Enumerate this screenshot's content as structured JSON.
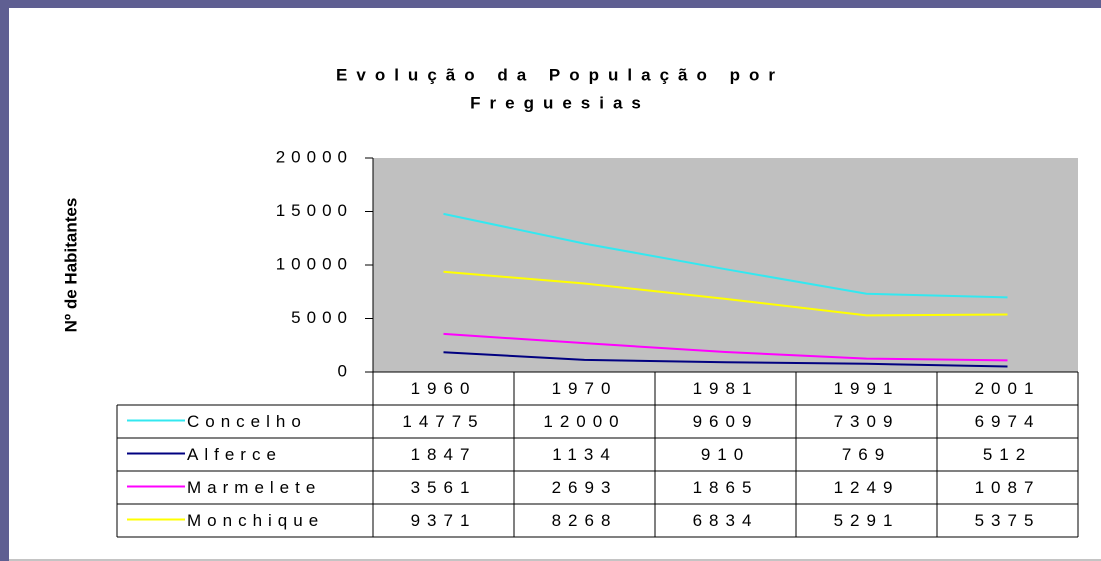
{
  "chart_data": {
    "type": "line",
    "title": "Evolução da População por Freguesias",
    "title_lines": [
      "Evolução da População por",
      "Freguesias"
    ],
    "y_label": "Nº de Habitantes",
    "categories": [
      "1960",
      "1970",
      "1981",
      "1991",
      "2001"
    ],
    "series": [
      {
        "name": "Concelho",
        "color": "#33e8f0",
        "values": [
          14775,
          12000,
          9609,
          7309,
          6974
        ]
      },
      {
        "name": "Alferce",
        "color": "#000080",
        "values": [
          1847,
          1134,
          910,
          769,
          512
        ]
      },
      {
        "name": "Marmelete",
        "color": "#ff00ff",
        "values": [
          3561,
          2693,
          1865,
          1249,
          1087
        ]
      },
      {
        "name": "Monchique",
        "color": "#ffff00",
        "values": [
          9371,
          8268,
          6834,
          5291,
          5375
        ]
      }
    ],
    "ylim": [
      0,
      20000
    ],
    "yticks": [
      0,
      5000,
      10000,
      15000,
      20000
    ],
    "plot_background": "#c0c0c0",
    "grid": false,
    "data_table": true
  }
}
